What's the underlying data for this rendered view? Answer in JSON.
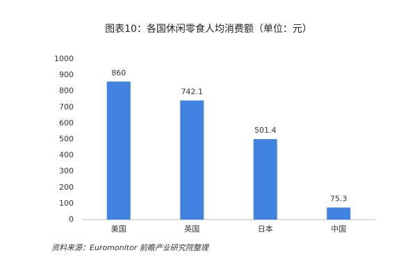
{
  "chart_data": {
    "type": "bar",
    "title": "图表10：各国休闲零食人均消费额（单位：元）",
    "categories": [
      "美国",
      "英国",
      "日本",
      "中国"
    ],
    "values": [
      860,
      742.1,
      501.4,
      75.3
    ],
    "color": "#3f82e0",
    "ylim": [
      0,
      1000
    ],
    "yticks": [
      0,
      100,
      200,
      300,
      400,
      500,
      600,
      700,
      800,
      900,
      1000
    ],
    "grid": false,
    "source": "资料来源：Euromonitor 前瞻产业研究院整理"
  }
}
